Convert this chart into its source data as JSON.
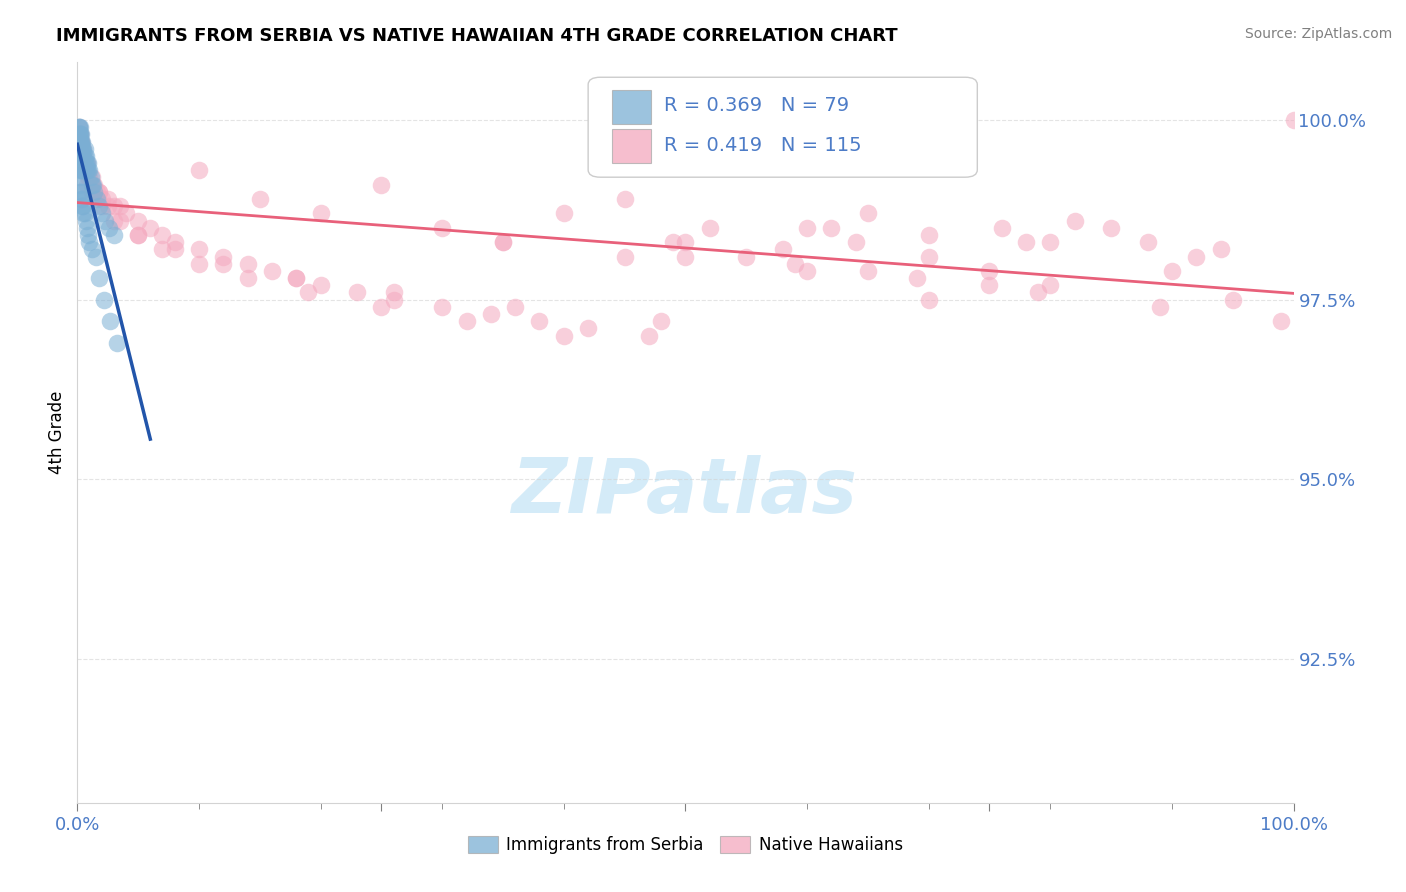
{
  "title": "IMMIGRANTS FROM SERBIA VS NATIVE HAWAIIAN 4TH GRADE CORRELATION CHART",
  "source": "Source: ZipAtlas.com",
  "ylabel": "4th Grade",
  "xlim": [
    0.0,
    1.0
  ],
  "ylim": [
    0.905,
    1.008
  ],
  "ytick_vals": [
    0.925,
    0.95,
    0.975,
    1.0
  ],
  "ytick_labels": [
    "92.5%",
    "95.0%",
    "97.5%",
    "100.0%"
  ],
  "xtick_vals": [
    0.0,
    0.25,
    0.5,
    0.75,
    1.0
  ],
  "xtick_labels_bottom": [
    "0.0%",
    "",
    "",
    "",
    "100.0%"
  ],
  "legend_labels": [
    "Immigrants from Serbia",
    "Native Hawaiians"
  ],
  "blue_R": 0.369,
  "blue_N": 79,
  "pink_R": 0.419,
  "pink_N": 115,
  "blue_color": "#7bafd4",
  "pink_color": "#f4a8be",
  "blue_line_color": "#2255aa",
  "pink_line_color": "#e8607a",
  "watermark": "ZIPatlas",
  "background_color": "#ffffff",
  "title_fontsize": 13,
  "source_fontsize": 10,
  "ytick_color": "#4d7cc7",
  "xtick_color": "#4d7cc7",
  "blue_seed_x": [
    0.001,
    0.001,
    0.001,
    0.001,
    0.001,
    0.001,
    0.001,
    0.001,
    0.001,
    0.001,
    0.002,
    0.002,
    0.002,
    0.002,
    0.002,
    0.002,
    0.002,
    0.002,
    0.002,
    0.002,
    0.003,
    0.003,
    0.003,
    0.003,
    0.003,
    0.003,
    0.003,
    0.003,
    0.004,
    0.004,
    0.004,
    0.004,
    0.004,
    0.004,
    0.005,
    0.005,
    0.005,
    0.005,
    0.006,
    0.006,
    0.006,
    0.007,
    0.007,
    0.007,
    0.008,
    0.008,
    0.009,
    0.009,
    0.01,
    0.011,
    0.012,
    0.013,
    0.014,
    0.016,
    0.018,
    0.02,
    0.023,
    0.026,
    0.03,
    0.002,
    0.002,
    0.002,
    0.003,
    0.003,
    0.004,
    0.004,
    0.005,
    0.005,
    0.006,
    0.007,
    0.008,
    0.009,
    0.01,
    0.012,
    0.015,
    0.018,
    0.022,
    0.027,
    0.033
  ],
  "blue_seed_y": [
    0.999,
    0.999,
    0.998,
    0.998,
    0.997,
    0.997,
    0.996,
    0.996,
    0.995,
    0.995,
    0.999,
    0.998,
    0.998,
    0.997,
    0.997,
    0.996,
    0.995,
    0.995,
    0.994,
    0.993,
    0.998,
    0.997,
    0.997,
    0.996,
    0.995,
    0.995,
    0.994,
    0.993,
    0.997,
    0.996,
    0.996,
    0.995,
    0.994,
    0.993,
    0.996,
    0.995,
    0.994,
    0.993,
    0.996,
    0.995,
    0.994,
    0.995,
    0.994,
    0.993,
    0.994,
    0.993,
    0.994,
    0.993,
    0.993,
    0.992,
    0.991,
    0.991,
    0.99,
    0.989,
    0.988,
    0.987,
    0.986,
    0.985,
    0.984,
    0.992,
    0.991,
    0.99,
    0.99,
    0.989,
    0.989,
    0.988,
    0.988,
    0.987,
    0.987,
    0.986,
    0.985,
    0.984,
    0.983,
    0.982,
    0.981,
    0.978,
    0.975,
    0.972,
    0.969
  ],
  "pink_seed_x": [
    0.001,
    0.001,
    0.002,
    0.002,
    0.003,
    0.003,
    0.004,
    0.004,
    0.005,
    0.005,
    0.006,
    0.007,
    0.008,
    0.009,
    0.01,
    0.012,
    0.014,
    0.016,
    0.018,
    0.02,
    0.025,
    0.03,
    0.035,
    0.04,
    0.05,
    0.06,
    0.07,
    0.08,
    0.1,
    0.12,
    0.14,
    0.16,
    0.18,
    0.2,
    0.23,
    0.26,
    0.3,
    0.34,
    0.38,
    0.42,
    0.47,
    0.52,
    0.58,
    0.64,
    0.7,
    0.76,
    0.82,
    0.88,
    0.94,
    1.0,
    0.003,
    0.005,
    0.008,
    0.012,
    0.018,
    0.025,
    0.035,
    0.05,
    0.07,
    0.1,
    0.14,
    0.19,
    0.25,
    0.32,
    0.4,
    0.49,
    0.59,
    0.69,
    0.79,
    0.89,
    0.99,
    0.002,
    0.003,
    0.004,
    0.006,
    0.008,
    0.012,
    0.02,
    0.03,
    0.05,
    0.08,
    0.12,
    0.18,
    0.26,
    0.36,
    0.48,
    0.62,
    0.78,
    0.92,
    0.2,
    0.3,
    0.5,
    0.7,
    0.9,
    0.15,
    0.4,
    0.6,
    0.8,
    0.25,
    0.45,
    0.65,
    0.85,
    0.35,
    0.55,
    0.75,
    0.1,
    0.7,
    0.35,
    0.5,
    0.65,
    0.8,
    0.95,
    0.45,
    0.6,
    0.75
  ],
  "pink_seed_y": [
    0.999,
    0.998,
    0.998,
    0.997,
    0.997,
    0.996,
    0.996,
    0.995,
    0.995,
    0.994,
    0.994,
    0.993,
    0.993,
    0.992,
    0.992,
    0.991,
    0.991,
    0.99,
    0.99,
    0.989,
    0.989,
    0.988,
    0.988,
    0.987,
    0.986,
    0.985,
    0.984,
    0.983,
    0.982,
    0.981,
    0.98,
    0.979,
    0.978,
    0.977,
    0.976,
    0.975,
    0.974,
    0.973,
    0.972,
    0.971,
    0.97,
    0.985,
    0.982,
    0.983,
    0.984,
    0.985,
    0.986,
    0.983,
    0.982,
    1.0,
    0.997,
    0.996,
    0.994,
    0.992,
    0.99,
    0.988,
    0.986,
    0.984,
    0.982,
    0.98,
    0.978,
    0.976,
    0.974,
    0.972,
    0.97,
    0.983,
    0.98,
    0.978,
    0.976,
    0.974,
    0.972,
    0.998,
    0.997,
    0.995,
    0.993,
    0.991,
    0.99,
    0.988,
    0.986,
    0.984,
    0.982,
    0.98,
    0.978,
    0.976,
    0.974,
    0.972,
    0.985,
    0.983,
    0.981,
    0.987,
    0.985,
    0.983,
    0.981,
    0.979,
    0.989,
    0.987,
    0.985,
    0.983,
    0.991,
    0.989,
    0.987,
    0.985,
    0.983,
    0.981,
    0.979,
    0.993,
    0.975,
    0.983,
    0.981,
    0.979,
    0.977,
    0.975,
    0.981,
    0.979,
    0.977
  ]
}
